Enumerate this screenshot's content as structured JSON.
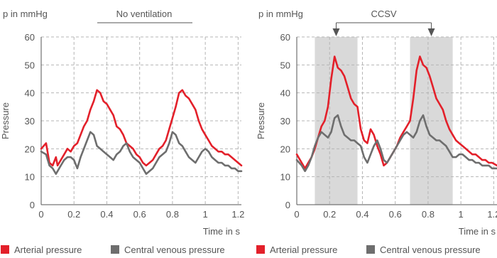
{
  "colors": {
    "arterial": "#e3202a",
    "venous": "#6e6e6e",
    "shade": "#d9d9d9",
    "grid": "#b5b5b5",
    "axis": "#555555"
  },
  "chart_data": [
    {
      "type": "line",
      "title": "No ventilation",
      "unit_label": "p in mmHg",
      "ylabel": "Pressure",
      "xlabel": "Time in s",
      "xlim": [
        0,
        1.22
      ],
      "ylim": [
        0,
        60
      ],
      "x_ticks": [
        "0",
        "0.2",
        "0.4",
        "0.6",
        "0.8",
        "1",
        "1.2"
      ],
      "x_tick_values": [
        0,
        0.2,
        0.4,
        0.6,
        0.8,
        1.0,
        1.2
      ],
      "y_ticks": [
        "0",
        "10",
        "20",
        "30",
        "40",
        "50",
        "60"
      ],
      "y_tick_values": [
        0,
        10,
        20,
        30,
        40,
        50,
        60
      ],
      "grid": true,
      "shaded_intervals": [],
      "series": [
        {
          "name": "Arterial pressure",
          "color": "#e3202a",
          "x": [
            0,
            0.03,
            0.05,
            0.07,
            0.09,
            0.1,
            0.12,
            0.14,
            0.16,
            0.18,
            0.2,
            0.22,
            0.24,
            0.26,
            0.28,
            0.3,
            0.32,
            0.34,
            0.36,
            0.38,
            0.4,
            0.42,
            0.44,
            0.46,
            0.48,
            0.5,
            0.52,
            0.54,
            0.56,
            0.58,
            0.6,
            0.62,
            0.64,
            0.66,
            0.68,
            0.7,
            0.72,
            0.74,
            0.76,
            0.78,
            0.8,
            0.82,
            0.84,
            0.86,
            0.88,
            0.9,
            0.92,
            0.94,
            0.96,
            0.98,
            1.0,
            1.02,
            1.04,
            1.06,
            1.08,
            1.1,
            1.12,
            1.14,
            1.16,
            1.18,
            1.2,
            1.22
          ],
          "values": [
            20,
            22,
            15,
            14,
            17,
            14,
            16,
            18,
            20,
            19,
            21,
            22,
            25,
            28,
            30,
            34,
            37,
            41,
            40,
            37,
            36,
            34,
            32,
            28,
            27,
            25,
            22,
            21,
            20,
            18,
            17,
            15,
            14,
            15,
            16,
            18,
            20,
            21,
            23,
            27,
            31,
            35,
            40,
            41,
            39,
            38,
            36,
            34,
            30,
            27,
            25,
            23,
            21,
            20,
            19,
            19,
            18,
            18,
            17,
            16,
            15,
            14
          ]
        },
        {
          "name": "Central venous pressure",
          "color": "#6e6e6e",
          "x": [
            0,
            0.03,
            0.05,
            0.07,
            0.09,
            0.1,
            0.12,
            0.14,
            0.16,
            0.18,
            0.2,
            0.22,
            0.24,
            0.26,
            0.28,
            0.3,
            0.32,
            0.34,
            0.36,
            0.38,
            0.4,
            0.42,
            0.44,
            0.46,
            0.48,
            0.5,
            0.52,
            0.54,
            0.56,
            0.58,
            0.6,
            0.62,
            0.64,
            0.66,
            0.68,
            0.7,
            0.72,
            0.74,
            0.76,
            0.78,
            0.8,
            0.82,
            0.84,
            0.86,
            0.88,
            0.9,
            0.92,
            0.94,
            0.96,
            0.98,
            1.0,
            1.02,
            1.04,
            1.06,
            1.08,
            1.1,
            1.12,
            1.14,
            1.16,
            1.18,
            1.2,
            1.22
          ],
          "values": [
            19,
            18,
            14,
            13,
            11,
            12,
            14,
            16,
            17,
            17,
            16,
            13,
            17,
            20,
            23,
            26,
            25,
            21,
            20,
            19,
            18,
            17,
            16,
            18,
            19,
            21,
            22,
            19,
            17,
            16,
            15,
            13,
            11,
            12,
            13,
            15,
            17,
            18,
            19,
            22,
            26,
            25,
            22,
            21,
            19,
            17,
            16,
            15,
            17,
            19,
            20,
            19,
            17,
            16,
            15,
            15,
            14,
            14,
            13,
            13,
            12,
            12
          ]
        }
      ]
    },
    {
      "type": "line",
      "title": "CCSV",
      "unit_label": "p in mmHg",
      "ylabel": "Pressure",
      "xlabel": "Time in s",
      "xlim": [
        0,
        1.22
      ],
      "ylim": [
        0,
        60
      ],
      "x_ticks": [
        "0",
        "0.2",
        "0.4",
        "0.6",
        "0.8",
        "1",
        "1.2"
      ],
      "x_tick_values": [
        0,
        0.2,
        0.4,
        0.6,
        0.8,
        1.0,
        1.2
      ],
      "y_ticks": [
        "0",
        "10",
        "20",
        "30",
        "40",
        "50",
        "60"
      ],
      "y_tick_values": [
        0,
        10,
        20,
        30,
        40,
        50,
        60
      ],
      "grid": true,
      "shaded_intervals": [
        [
          0.11,
          0.37
        ],
        [
          0.69,
          0.95
        ]
      ],
      "arrow_positions": [
        0.24,
        0.82
      ],
      "series": [
        {
          "name": "Arterial pressure",
          "color": "#e3202a",
          "x": [
            0,
            0.03,
            0.05,
            0.07,
            0.09,
            0.11,
            0.13,
            0.15,
            0.17,
            0.19,
            0.21,
            0.23,
            0.25,
            0.27,
            0.29,
            0.31,
            0.33,
            0.35,
            0.37,
            0.39,
            0.41,
            0.43,
            0.45,
            0.47,
            0.49,
            0.51,
            0.53,
            0.55,
            0.57,
            0.59,
            0.61,
            0.63,
            0.65,
            0.67,
            0.69,
            0.71,
            0.73,
            0.75,
            0.77,
            0.79,
            0.81,
            0.83,
            0.85,
            0.87,
            0.89,
            0.91,
            0.93,
            0.95,
            0.97,
            0.99,
            1.01,
            1.03,
            1.05,
            1.07,
            1.09,
            1.11,
            1.13,
            1.15,
            1.17,
            1.19,
            1.22
          ],
          "values": [
            18,
            15,
            13,
            15,
            17,
            20,
            24,
            28,
            30,
            35,
            45,
            53,
            49,
            48,
            46,
            42,
            38,
            36,
            35,
            27,
            23,
            22,
            27,
            25,
            21,
            18,
            14,
            15,
            17,
            19,
            21,
            24,
            26,
            28,
            30,
            38,
            48,
            53,
            50,
            49,
            46,
            42,
            38,
            36,
            34,
            30,
            27,
            25,
            23,
            22,
            21,
            20,
            19,
            18,
            18,
            17,
            16,
            16,
            15,
            15,
            14
          ]
        },
        {
          "name": "Central venous pressure",
          "color": "#6e6e6e",
          "x": [
            0,
            0.03,
            0.05,
            0.07,
            0.09,
            0.11,
            0.13,
            0.15,
            0.17,
            0.19,
            0.21,
            0.23,
            0.25,
            0.27,
            0.29,
            0.31,
            0.33,
            0.35,
            0.37,
            0.39,
            0.41,
            0.43,
            0.45,
            0.47,
            0.49,
            0.51,
            0.53,
            0.55,
            0.57,
            0.59,
            0.61,
            0.63,
            0.65,
            0.67,
            0.69,
            0.71,
            0.73,
            0.75,
            0.77,
            0.79,
            0.81,
            0.83,
            0.85,
            0.87,
            0.89,
            0.91,
            0.93,
            0.95,
            0.97,
            0.99,
            1.01,
            1.03,
            1.05,
            1.07,
            1.09,
            1.11,
            1.13,
            1.15,
            1.17,
            1.19,
            1.22
          ],
          "values": [
            16,
            14,
            12,
            14,
            17,
            21,
            24,
            26,
            25,
            24,
            26,
            31,
            32,
            28,
            25,
            24,
            23,
            23,
            22,
            21,
            17,
            15,
            18,
            21,
            23,
            20,
            16,
            15,
            17,
            19,
            21,
            23,
            25,
            26,
            25,
            24,
            26,
            30,
            32,
            28,
            25,
            24,
            23,
            23,
            22,
            21,
            19,
            17,
            17,
            18,
            18,
            17,
            16,
            16,
            15,
            15,
            14,
            14,
            14,
            13,
            13
          ]
        }
      ]
    }
  ],
  "legend": {
    "items": [
      {
        "label": "Arterial pressure",
        "color": "#e3202a"
      },
      {
        "label": "Central venous pressure",
        "color": "#6e6e6e"
      }
    ]
  }
}
